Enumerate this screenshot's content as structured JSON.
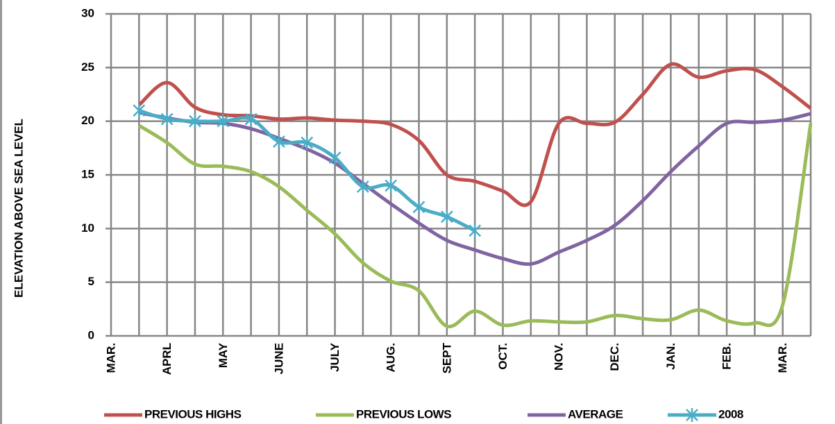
{
  "chart_data": {
    "type": "line",
    "y_label": "ELEVATION ABOVE SEA LEVEL",
    "categories": [
      "MAR.",
      null,
      "APRL",
      null,
      "MAY",
      null,
      "JUNE",
      null,
      "JULY",
      null,
      "AUG.",
      null,
      "SEPT",
      null,
      "OCT.",
      null,
      "NOV.",
      null,
      "DEC.",
      null,
      "JAN.",
      null,
      "FEB.",
      null,
      "MAR.",
      null
    ],
    "series": [
      {
        "name": "PREVIOUS HIGHS",
        "color": "#c0504d",
        "values": [
          null,
          21.5,
          23.6,
          21.3,
          20.6,
          20.5,
          20.2,
          20.3,
          20.1,
          20.0,
          19.7,
          18.2,
          15.0,
          14.4,
          13.5,
          12.5,
          19.8,
          19.8,
          19.9,
          22.5,
          25.3,
          24.1,
          24.7,
          24.8,
          23.2,
          21.2
        ]
      },
      {
        "name": "PREVIOUS LOWS",
        "color": "#9bbb59",
        "values": [
          null,
          19.6,
          18.0,
          16.0,
          15.8,
          15.3,
          13.9,
          11.7,
          9.5,
          6.8,
          5.1,
          4.2,
          0.9,
          2.3,
          1.0,
          1.4,
          1.3,
          1.3,
          1.9,
          1.6,
          1.5,
          2.4,
          1.4,
          1.2,
          2.9,
          19.8
        ]
      },
      {
        "name": "AVERAGE",
        "color": "#8064a2",
        "values": [
          null,
          20.8,
          20.3,
          19.9,
          19.8,
          19.3,
          18.4,
          17.4,
          16.1,
          14.2,
          12.3,
          10.5,
          8.9,
          8.0,
          7.2,
          6.7,
          7.8,
          8.9,
          10.3,
          12.6,
          15.3,
          17.7,
          19.8,
          19.9,
          20.1,
          20.7
        ]
      },
      {
        "name": "2008",
        "color": "#4bacc6",
        "marker": "asterisk",
        "values": [
          null,
          21.0,
          20.2,
          20.0,
          20.0,
          20.2,
          18.1,
          18.0,
          16.6,
          13.9,
          14.0,
          12.0,
          11.1,
          9.8,
          null,
          null,
          null,
          null,
          null,
          null,
          null,
          null,
          null,
          null,
          null,
          null
        ]
      }
    ],
    "ylim": [
      0,
      30
    ],
    "yticks": [
      0,
      5,
      10,
      15,
      20,
      25,
      30
    ],
    "grid": true,
    "legend": "bottom"
  }
}
